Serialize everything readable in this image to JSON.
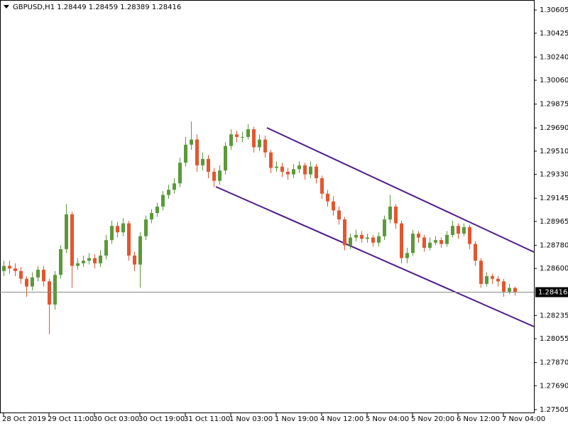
{
  "chart_data": {
    "type": "candlestick",
    "title": "GBPUSD,H1  1.28449 1.28459 1.28389 1.28416",
    "categories": [
      "28 Oct 2019",
      null,
      null,
      null,
      null,
      null,
      null,
      null,
      "29 Oct 11:00",
      null,
      null,
      null,
      null,
      null,
      null,
      null,
      "30 Oct 03:00",
      null,
      null,
      null,
      null,
      null,
      null,
      null,
      "30 Oct 19:00",
      null,
      null,
      null,
      null,
      null,
      null,
      null,
      "31 Oct 11:00",
      null,
      null,
      null,
      null,
      null,
      null,
      null,
      "1 Nov 03:00",
      null,
      null,
      null,
      null,
      null,
      null,
      null,
      "1 Nov 19:00",
      null,
      null,
      null,
      null,
      null,
      null,
      null,
      "4 Nov 12:00",
      null,
      null,
      null,
      null,
      null,
      null,
      null,
      "5 Nov 04:00",
      null,
      null,
      null,
      null,
      null,
      null,
      null,
      "5 Nov 20:00",
      null,
      null,
      null,
      null,
      null,
      null,
      null,
      "6 Nov 12:00",
      null,
      null,
      null,
      null,
      null,
      null,
      null,
      "7 Nov 04:00",
      null,
      null
    ],
    "open": [
      1.2858,
      1.2862,
      1.286,
      1.2858,
      1.2852,
      1.2846,
      1.2853,
      1.2859,
      1.285,
      1.2832,
      1.2855,
      1.2875,
      1.2902,
      1.2862,
      1.2864,
      1.2866,
      1.2868,
      1.2864,
      1.287,
      1.2882,
      1.2893,
      1.2888,
      1.2895,
      1.287,
      1.2863,
      1.2885,
      1.2898,
      1.2903,
      1.2908,
      1.2917,
      1.2921,
      1.2926,
      1.2942,
      1.2956,
      1.296,
      1.294,
      1.2945,
      1.2935,
      1.2928,
      1.2936,
      1.2955,
      1.2964,
      1.2962,
      1.2962,
      1.2968,
      1.2954,
      1.296,
      1.295,
      1.2938,
      1.2939,
      1.2935,
      1.2933,
      1.2937,
      1.294,
      1.2933,
      1.2939,
      1.293,
      1.2918,
      1.2912,
      1.2905,
      1.2898,
      1.2878,
      1.2884,
      1.2886,
      1.2883,
      1.2884,
      1.288,
      1.2885,
      1.2898,
      1.2908,
      1.2895,
      1.2868,
      1.2872,
      1.2887,
      1.2884,
      1.2876,
      1.288,
      1.2882,
      1.2879,
      1.2886,
      1.2893,
      1.2887,
      1.2892,
      1.2879,
      1.2866,
      1.2848,
      1.2854,
      1.2852,
      1.285,
      1.2842,
      1.28449
    ],
    "high": [
      1.2866,
      1.2866,
      1.2864,
      1.2861,
      1.2854,
      1.2857,
      1.2862,
      1.2862,
      1.2852,
      1.2858,
      1.2878,
      1.291,
      1.2904,
      1.2868,
      1.287,
      1.2872,
      1.2871,
      1.2874,
      1.2886,
      1.2897,
      1.2896,
      1.2899,
      1.2897,
      1.2873,
      1.2888,
      1.2901,
      1.2906,
      1.2911,
      1.292,
      1.2925,
      1.293,
      1.2946,
      1.2962,
      1.2974,
      1.2964,
      1.295,
      1.2948,
      1.2938,
      1.294,
      1.2958,
      1.2968,
      1.2967,
      1.2966,
      1.2972,
      1.297,
      1.2964,
      1.2963,
      1.2952,
      1.2943,
      1.2942,
      1.2938,
      1.2941,
      1.2943,
      1.2942,
      1.2943,
      1.2941,
      1.2932,
      1.2921,
      1.2916,
      1.2908,
      1.29,
      1.2887,
      1.289,
      1.2889,
      1.2887,
      1.2886,
      1.2888,
      1.2901,
      1.2917,
      1.291,
      1.2897,
      1.2876,
      1.289,
      1.2889,
      1.2886,
      1.2884,
      1.2885,
      1.2884,
      1.2889,
      1.2897,
      1.2895,
      1.2895,
      1.2894,
      1.2881,
      1.2868,
      1.2857,
      1.2856,
      1.2854,
      1.2852,
      1.2848,
      1.28459
    ],
    "low": [
      1.2854,
      1.2856,
      1.2854,
      1.2848,
      1.2838,
      1.2843,
      1.285,
      1.2846,
      1.2809,
      1.2828,
      1.2852,
      1.2872,
      1.2845,
      1.2859,
      1.2861,
      1.2863,
      1.286,
      1.2861,
      1.2867,
      1.2879,
      1.2884,
      1.2885,
      1.2866,
      1.2858,
      1.2845,
      1.2882,
      1.2895,
      1.29,
      1.2905,
      1.2914,
      1.2918,
      1.2923,
      1.2939,
      1.2952,
      1.2935,
      1.2936,
      1.293,
      1.2923,
      1.2925,
      1.2933,
      1.2952,
      1.2958,
      1.2958,
      1.296,
      1.295,
      1.2951,
      1.2946,
      1.2934,
      1.2935,
      1.2931,
      1.2929,
      1.293,
      1.2934,
      1.2929,
      1.293,
      1.2926,
      1.2914,
      1.2908,
      1.2901,
      1.2894,
      1.2874,
      1.2875,
      1.2881,
      1.288,
      1.288,
      1.2877,
      1.2877,
      1.2882,
      1.2895,
      1.2891,
      1.2864,
      1.2864,
      1.287,
      1.288,
      1.2873,
      1.2874,
      1.2878,
      1.2876,
      1.2877,
      1.2884,
      1.2883,
      1.2885,
      1.2875,
      1.2862,
      1.2845,
      1.2846,
      1.2848,
      1.2846,
      1.2838,
      1.284,
      1.28389
    ],
    "close": [
      1.2862,
      1.286,
      1.2858,
      1.2852,
      1.2846,
      1.2853,
      1.2859,
      1.285,
      1.2832,
      1.2855,
      1.2875,
      1.2902,
      1.2862,
      1.2864,
      1.2866,
      1.2868,
      1.2864,
      1.287,
      1.2882,
      1.2893,
      1.2888,
      1.2895,
      1.287,
      1.2863,
      1.2885,
      1.2898,
      1.2903,
      1.2908,
      1.2917,
      1.2921,
      1.2926,
      1.2942,
      1.2956,
      1.296,
      1.294,
      1.2945,
      1.2935,
      1.2928,
      1.2936,
      1.2955,
      1.2964,
      1.2962,
      1.2962,
      1.2968,
      1.2954,
      1.296,
      1.295,
      1.2938,
      1.2939,
      1.2935,
      1.2933,
      1.2937,
      1.294,
      1.2933,
      1.2939,
      1.293,
      1.2918,
      1.2912,
      1.2905,
      1.2898,
      1.2878,
      1.2884,
      1.2886,
      1.2883,
      1.2884,
      1.288,
      1.2885,
      1.2898,
      1.2908,
      1.2895,
      1.2868,
      1.2872,
      1.2887,
      1.2884,
      1.2876,
      1.288,
      1.2882,
      1.2879,
      1.2886,
      1.2893,
      1.2887,
      1.2892,
      1.2879,
      1.2866,
      1.2848,
      1.2854,
      1.2852,
      1.285,
      1.2842,
      1.28449,
      1.28416
    ],
    "up_color": "#5a9a3a",
    "down_color": "#e4552f",
    "current_price": 1.28416,
    "ylim": [
      1.27477,
      1.30677
    ],
    "yticks": [
      1.30605,
      1.30425,
      {
        "value": 1.3024,
        "label": "1.30240"
      },
      {
        "value": 1.3006,
        "label": "1.30060"
      },
      1.29875,
      {
        "value": 1.2969,
        "label": "1.29690"
      },
      {
        "value": 1.2951,
        "label": "1.29510"
      },
      {
        "value": 1.2933,
        "label": "1.29330"
      },
      1.29145,
      1.28965,
      {
        "value": 1.2878,
        "label": "1.28780"
      },
      {
        "value": 1.286,
        "label": "1.28600"
      },
      1.28235,
      1.28055,
      {
        "value": 1.2787,
        "label": "1.27870"
      },
      {
        "value": 1.2769,
        "label": "1.27690"
      },
      1.27505
    ]
  }
}
